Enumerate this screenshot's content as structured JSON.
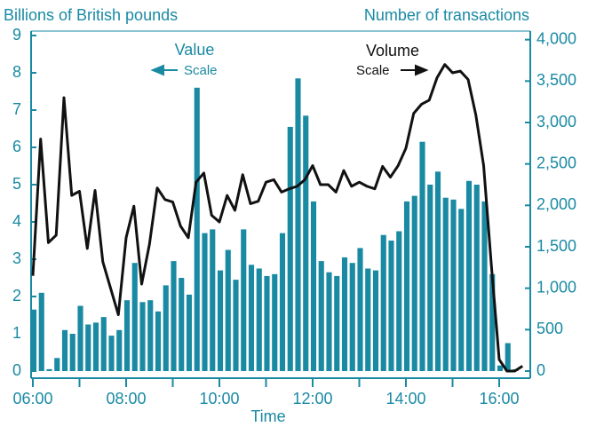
{
  "chart_data": {
    "type": "bar_line",
    "y_label": "Billions of British pounds",
    "y2_label": "Number of transactions",
    "x_label": "Time",
    "annotations": [
      "Value",
      "Scale",
      "Volume",
      "Scale"
    ],
    "x": [
      360,
      370,
      380,
      390,
      400,
      410,
      420,
      430,
      440,
      450,
      460,
      470,
      480,
      490,
      500,
      510,
      520,
      530,
      540,
      550,
      560,
      570,
      580,
      590,
      600,
      610,
      620,
      630,
      640,
      650,
      660,
      670,
      680,
      690,
      700,
      710,
      720,
      730,
      740,
      750,
      760,
      770,
      780,
      790,
      800,
      810,
      820,
      830,
      840,
      850,
      860,
      870,
      880,
      890,
      900,
      910,
      920,
      930,
      940,
      950,
      960,
      970,
      980,
      990
    ],
    "series": [
      {
        "name": "Value",
        "color": "#1a8aa3",
        "axis": "y",
        "kind": "bar",
        "values": [
          1.65,
          2.1,
          0.05,
          0.35,
          1.1,
          1.0,
          1.75,
          1.25,
          1.3,
          1.45,
          0.95,
          1.1,
          1.9,
          2.9,
          1.85,
          1.9,
          1.6,
          2.3,
          2.95,
          2.5,
          2.05,
          7.6,
          3.7,
          3.8,
          2.7,
          3.25,
          2.45,
          3.8,
          2.85,
          2.75,
          2.55,
          2.6,
          3.7,
          6.55,
          7.85,
          6.85,
          4.55,
          2.95,
          2.65,
          2.55,
          3.05,
          2.9,
          3.3,
          2.75,
          2.7,
          3.65,
          3.5,
          3.75,
          4.55,
          4.7,
          6.15,
          5.0,
          5.35,
          4.65,
          4.6,
          4.35,
          5.1,
          5.0,
          4.55,
          2.6,
          0.15,
          0.75,
          0.05,
          null
        ]
      },
      {
        "name": "Volume",
        "color": "#111111",
        "axis": "y2",
        "kind": "line",
        "values": [
          1150,
          2800,
          1550,
          1640,
          3300,
          2120,
          2170,
          1480,
          2180,
          1320,
          1000,
          680,
          1610,
          1990,
          1050,
          1530,
          2210,
          2070,
          2040,
          1750,
          1610,
          2280,
          2390,
          1880,
          1800,
          2120,
          1940,
          2370,
          2020,
          2050,
          2280,
          2310,
          2160,
          2200,
          2230,
          2310,
          2480,
          2250,
          2250,
          2160,
          2420,
          2230,
          2280,
          2230,
          2200,
          2470,
          2340,
          2480,
          2690,
          3110,
          3220,
          3270,
          3540,
          3700,
          3600,
          3620,
          3520,
          3090,
          2480,
          1270,
          140,
          0,
          0,
          60
        ]
      }
    ],
    "xlim": [
      360,
      1000
    ],
    "xticks": [
      {
        "value": 360,
        "label": "06:00"
      },
      {
        "value": 480,
        "label": "08:00"
      },
      {
        "value": 600,
        "label": "10:00"
      },
      {
        "value": 720,
        "label": "12:00"
      },
      {
        "value": 840,
        "label": "14:00"
      },
      {
        "value": 960,
        "label": "16:00"
      }
    ],
    "xminor": [
      420,
      540,
      660,
      780,
      900
    ],
    "ylim": [
      0,
      9
    ],
    "yticks": [
      0,
      1,
      2,
      3,
      4,
      5,
      6,
      7,
      8,
      9
    ],
    "y2lim": [
      0,
      4050
    ],
    "y2ticks": [
      0,
      500,
      {
        "value": 1000,
        "label": "1,000"
      },
      {
        "value": 1500,
        "label": "1,500"
      },
      {
        "value": 2000,
        "label": "2,000"
      },
      {
        "value": 2500,
        "label": "2,500"
      },
      {
        "value": 3000,
        "label": "3,000"
      },
      {
        "value": 3500,
        "label": "3,500"
      },
      {
        "value": 4000,
        "label": "4,000"
      }
    ],
    "axis_color": "#1a8aa3"
  }
}
